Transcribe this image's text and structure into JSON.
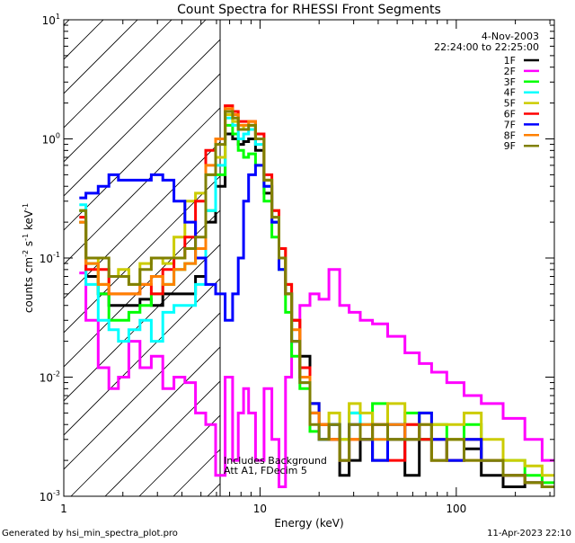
{
  "chart_data": {
    "type": "line",
    "title": "Count Spectra for RHESSI Front Segments",
    "xlabel": "Energy (keV)",
    "ylabel": "counts cm-2 s-1 keV-1",
    "ylabel_parts": [
      "counts cm",
      "-2",
      " s",
      "-1",
      " keV",
      "-1"
    ],
    "xscale": "log",
    "yscale": "log",
    "xlim": [
      1,
      316
    ],
    "ylim": [
      0.001,
      10
    ],
    "x_ticks": [
      {
        "value": 1,
        "label": "1"
      },
      {
        "value": 10,
        "label": "10"
      },
      {
        "value": 100,
        "label": "100"
      }
    ],
    "y_ticks": [
      {
        "value": 10,
        "base": "10",
        "exp": "1"
      },
      {
        "value": 1,
        "base": "10",
        "exp": "0"
      },
      {
        "value": 0.1,
        "base": "10",
        "exp": "-1"
      },
      {
        "value": 0.01,
        "base": "10",
        "exp": "-2"
      },
      {
        "value": 0.001,
        "base": "10",
        "exp": "-3"
      }
    ],
    "date": "4-Nov-2003",
    "time_range": "22:24:00 to 22:25:00",
    "annotations": [
      "Includes Background",
      "Att A1, FDecim 5"
    ],
    "hatched_region_keV": [
      1,
      6.26
    ],
    "legend_position": "top-right",
    "energy": [
      1.2,
      1.4,
      1.6,
      1.8,
      2.0,
      2.3,
      2.6,
      3.0,
      3.4,
      3.9,
      4.4,
      5.0,
      5.6,
      6.3,
      7,
      7.5,
      8,
      8.5,
      9,
      10,
      11,
      12,
      13,
      14,
      15,
      17,
      19,
      21,
      24,
      27,
      30,
      35,
      40,
      50,
      60,
      70,
      80,
      100,
      120,
      150,
      200,
      250,
      300
    ],
    "series": [
      {
        "name": "1F",
        "color": "#000000",
        "values": [
          0.2,
          0.07,
          0.05,
          0.04,
          0.04,
          0.04,
          0.045,
          0.04,
          0.05,
          0.05,
          0.05,
          0.07,
          0.2,
          0.4,
          1.1,
          1.0,
          0.9,
          0.95,
          1.0,
          0.8,
          0.35,
          0.2,
          0.1,
          0.05,
          0.03,
          0.015,
          0.006,
          0.004,
          0.003,
          0.0015,
          0.002,
          0.003,
          0.002,
          0.003,
          0.0015,
          0.003,
          0.002,
          0.002,
          0.0025,
          0.0015,
          0.0012,
          0.0013,
          0.0012
        ]
      },
      {
        "name": "2F",
        "color": "#ff00ff",
        "values": [
          0.075,
          0.03,
          0.012,
          0.008,
          0.01,
          0.02,
          0.012,
          0.015,
          0.008,
          0.01,
          0.009,
          0.005,
          0.004,
          0.0015,
          0.01,
          0.002,
          0.005,
          0.008,
          0.005,
          0.002,
          0.008,
          0.003,
          0.0012,
          0.01,
          0.02,
          0.04,
          0.05,
          0.045,
          0.08,
          0.04,
          0.035,
          0.03,
          0.028,
          0.022,
          0.016,
          0.013,
          0.011,
          0.009,
          0.007,
          0.006,
          0.0045,
          0.003,
          0.002
        ]
      },
      {
        "name": "3F",
        "color": "#00ff00",
        "values": [
          0.25,
          0.09,
          0.05,
          0.03,
          0.03,
          0.035,
          0.04,
          0.05,
          0.06,
          0.08,
          0.09,
          0.12,
          0.25,
          0.5,
          1.3,
          1.1,
          0.8,
          0.7,
          0.75,
          0.6,
          0.3,
          0.15,
          0.08,
          0.035,
          0.015,
          0.008,
          0.0035,
          0.003,
          0.004,
          0.003,
          0.005,
          0.004,
          0.006,
          0.004,
          0.005,
          0.003,
          0.004,
          0.003,
          0.004,
          0.002,
          0.002,
          0.0015,
          0.0013
        ]
      },
      {
        "name": "4F",
        "color": "#00ffff",
        "values": [
          0.28,
          0.06,
          0.03,
          0.025,
          0.02,
          0.025,
          0.03,
          0.02,
          0.035,
          0.04,
          0.04,
          0.06,
          0.25,
          0.6,
          1.5,
          1.3,
          1.0,
          1.1,
          1.2,
          0.9,
          0.4,
          0.2,
          0.1,
          0.05,
          0.02,
          0.009,
          0.005,
          0.003,
          0.004,
          0.002,
          0.005,
          0.004,
          0.003,
          0.004,
          0.003,
          0.005,
          0.003,
          0.002,
          0.003,
          0.002,
          0.0015,
          0.0013,
          0.0012
        ]
      },
      {
        "name": "5F",
        "color": "#cccc00",
        "values": [
          0.2,
          0.1,
          0.06,
          0.07,
          0.08,
          0.06,
          0.09,
          0.1,
          0.09,
          0.15,
          0.3,
          0.35,
          0.5,
          0.7,
          1.6,
          1.4,
          1.2,
          1.3,
          1.3,
          1.0,
          0.45,
          0.25,
          0.12,
          0.06,
          0.03,
          0.012,
          0.006,
          0.004,
          0.005,
          0.003,
          0.006,
          0.005,
          0.004,
          0.006,
          0.004,
          0.005,
          0.004,
          0.004,
          0.005,
          0.003,
          0.002,
          0.0018,
          0.0015
        ]
      },
      {
        "name": "6F",
        "color": "#ff0000",
        "values": [
          0.22,
          0.08,
          0.08,
          0.05,
          0.05,
          0.05,
          0.06,
          0.05,
          0.08,
          0.1,
          0.15,
          0.3,
          0.8,
          1.0,
          1.9,
          1.7,
          1.4,
          1.4,
          1.4,
          1.1,
          0.5,
          0.25,
          0.12,
          0.06,
          0.03,
          0.012,
          0.005,
          0.004,
          0.003,
          0.002,
          0.003,
          0.003,
          0.004,
          0.002,
          0.004,
          0.003,
          0.003,
          0.002,
          0.003,
          0.002,
          0.0015,
          0.0013,
          0.0012
        ]
      },
      {
        "name": "7F",
        "color": "#0000ff",
        "values": [
          0.32,
          0.35,
          0.4,
          0.5,
          0.45,
          0.45,
          0.45,
          0.5,
          0.45,
          0.3,
          0.2,
          0.1,
          0.06,
          0.05,
          0.03,
          0.05,
          0.1,
          0.3,
          0.5,
          0.6,
          0.4,
          0.2,
          0.08,
          0.05,
          0.02,
          0.01,
          0.006,
          0.003,
          0.004,
          0.002,
          0.004,
          0.003,
          0.002,
          0.004,
          0.003,
          0.005,
          0.003,
          0.002,
          0.003,
          0.002,
          0.0015,
          0.0013,
          0.0012
        ]
      },
      {
        "name": "8F",
        "color": "#ff8000",
        "values": [
          0.2,
          0.09,
          0.06,
          0.05,
          0.05,
          0.05,
          0.06,
          0.07,
          0.06,
          0.08,
          0.09,
          0.12,
          0.6,
          1.0,
          1.8,
          1.6,
          1.3,
          1.3,
          1.4,
          1.0,
          0.45,
          0.22,
          0.1,
          0.05,
          0.025,
          0.01,
          0.005,
          0.004,
          0.003,
          0.002,
          0.003,
          0.004,
          0.003,
          0.004,
          0.003,
          0.004,
          0.002,
          0.003,
          0.002,
          0.002,
          0.0015,
          0.0013,
          0.0012
        ]
      },
      {
        "name": "9F",
        "color": "#808000",
        "values": [
          0.25,
          0.1,
          0.1,
          0.07,
          0.07,
          0.06,
          0.08,
          0.1,
          0.1,
          0.1,
          0.12,
          0.15,
          0.5,
          0.9,
          1.7,
          1.5,
          1.2,
          1.2,
          1.3,
          1.0,
          0.45,
          0.22,
          0.1,
          0.05,
          0.02,
          0.009,
          0.004,
          0.003,
          0.004,
          0.002,
          0.004,
          0.003,
          0.004,
          0.003,
          0.003,
          0.004,
          0.002,
          0.003,
          0.002,
          0.002,
          0.0015,
          0.0013,
          0.0012
        ]
      }
    ]
  },
  "footer": {
    "generated_by": "Generated by hsi_min_spectra_plot.pro",
    "timestamp": "11-Apr-2023 22:10"
  }
}
